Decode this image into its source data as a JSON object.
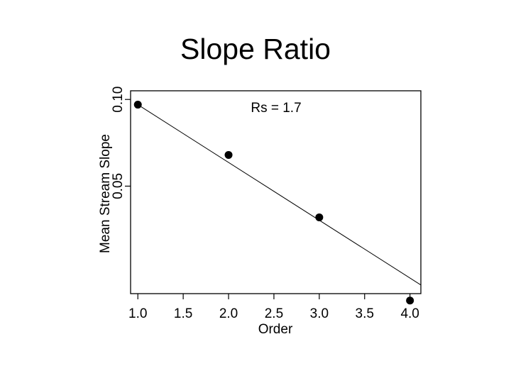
{
  "slide": {
    "title": "Slope Ratio"
  },
  "chart_data": {
    "type": "scatter",
    "title": "Slope Ratio",
    "xlabel": "Order",
    "ylabel": "Mean Stream Slope",
    "x_ticks": [
      "1.0",
      "1.5",
      "2.0",
      "2.5",
      "3.0",
      "3.5",
      "4.0"
    ],
    "y_ticks": [
      "0.05",
      "0.10"
    ],
    "xlim": [
      0.92,
      4.12
    ],
    "ylim": [
      -0.012,
      0.105
    ],
    "log_y": false,
    "grid": false,
    "annotation": "Rs = 1.7",
    "series": [
      {
        "x": [
          1,
          2,
          3,
          4
        ],
        "y": [
          0.097,
          0.068,
          0.032,
          -0.016
        ]
      }
    ],
    "fit_line": {
      "x": [
        1.0,
        4.12
      ],
      "y": [
        0.097,
        -0.007
      ]
    },
    "colors": {
      "points": "#000000",
      "line": "#000000",
      "frame": "#000000"
    }
  }
}
